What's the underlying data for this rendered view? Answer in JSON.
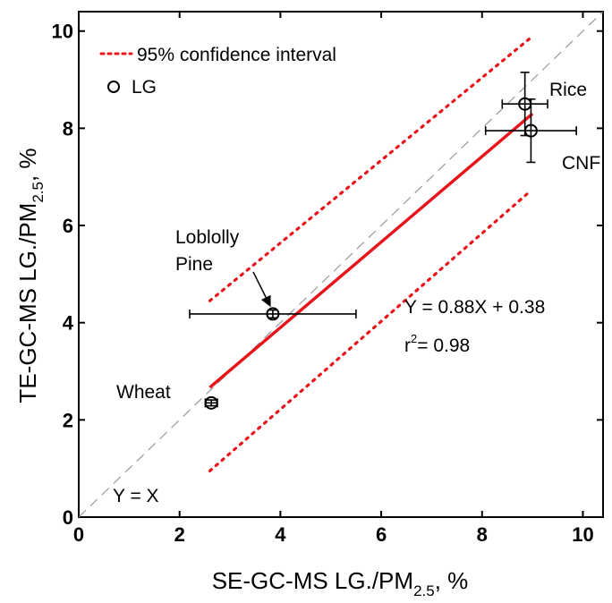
{
  "chart_data": {
    "type": "scatter",
    "xlabel": {
      "main": "SE-GC-MS LG./PM",
      "sub": "2.5",
      "tail": ", %"
    },
    "ylabel": {
      "main": "TE-GC-MS LG./PM",
      "sub": "2.5",
      "tail": ", %"
    },
    "xlim": [
      0,
      10.4
    ],
    "ylim": [
      0,
      10.4
    ],
    "xticks": [
      "0",
      "2",
      "4",
      "6",
      "8",
      "10"
    ],
    "yticks": [
      "0",
      "2",
      "4",
      "6",
      "8",
      "10"
    ],
    "grid": false,
    "legend": {
      "placement": "top-left",
      "items": [
        {
          "label": "95% confidence interval",
          "style": "dotted",
          "color": "#e8141c"
        },
        {
          "label": "LG",
          "style": "circle-marker",
          "color": "#000000"
        }
      ]
    },
    "points": [
      {
        "label": "Rice",
        "x": 8.85,
        "y": 8.5,
        "xerr": 0.45,
        "yerr": 0.65
      },
      {
        "label": "CNF",
        "x": 8.97,
        "y": 7.95,
        "xerr": 0.9,
        "yerr": 0.65
      },
      {
        "label": "Loblolly Pine",
        "x": 3.85,
        "y": 4.18,
        "xerr": 1.65,
        "yerr": 0.08
      },
      {
        "label": "Wheat",
        "x": 2.63,
        "y": 2.35,
        "xerr": 0.12,
        "yerr": 0.06
      }
    ],
    "fit": {
      "slope": 0.88,
      "intercept": 0.38,
      "x_range": [
        2.6,
        9.0
      ],
      "color": "#e8141c"
    },
    "confidence_band": {
      "upper": {
        "x": [
          2.6,
          8.95
        ],
        "y": [
          4.45,
          9.85
        ]
      },
      "lower": {
        "x": [
          2.6,
          8.95
        ],
        "y": [
          0.95,
          6.7
        ]
      }
    },
    "identity_line": {
      "label": "Y = X",
      "color": "#999999",
      "style": "dashed"
    },
    "annotations": {
      "equation": "Y = 0.88X + 0.38",
      "r2_prefix": "r",
      "r2_sup": "2",
      "r2_value": "= 0.98",
      "identity": "Y = X",
      "rice": "Rice",
      "cnf": "CNF",
      "pine_line1": "Loblolly",
      "pine_line2": "Pine",
      "wheat": "Wheat"
    }
  }
}
